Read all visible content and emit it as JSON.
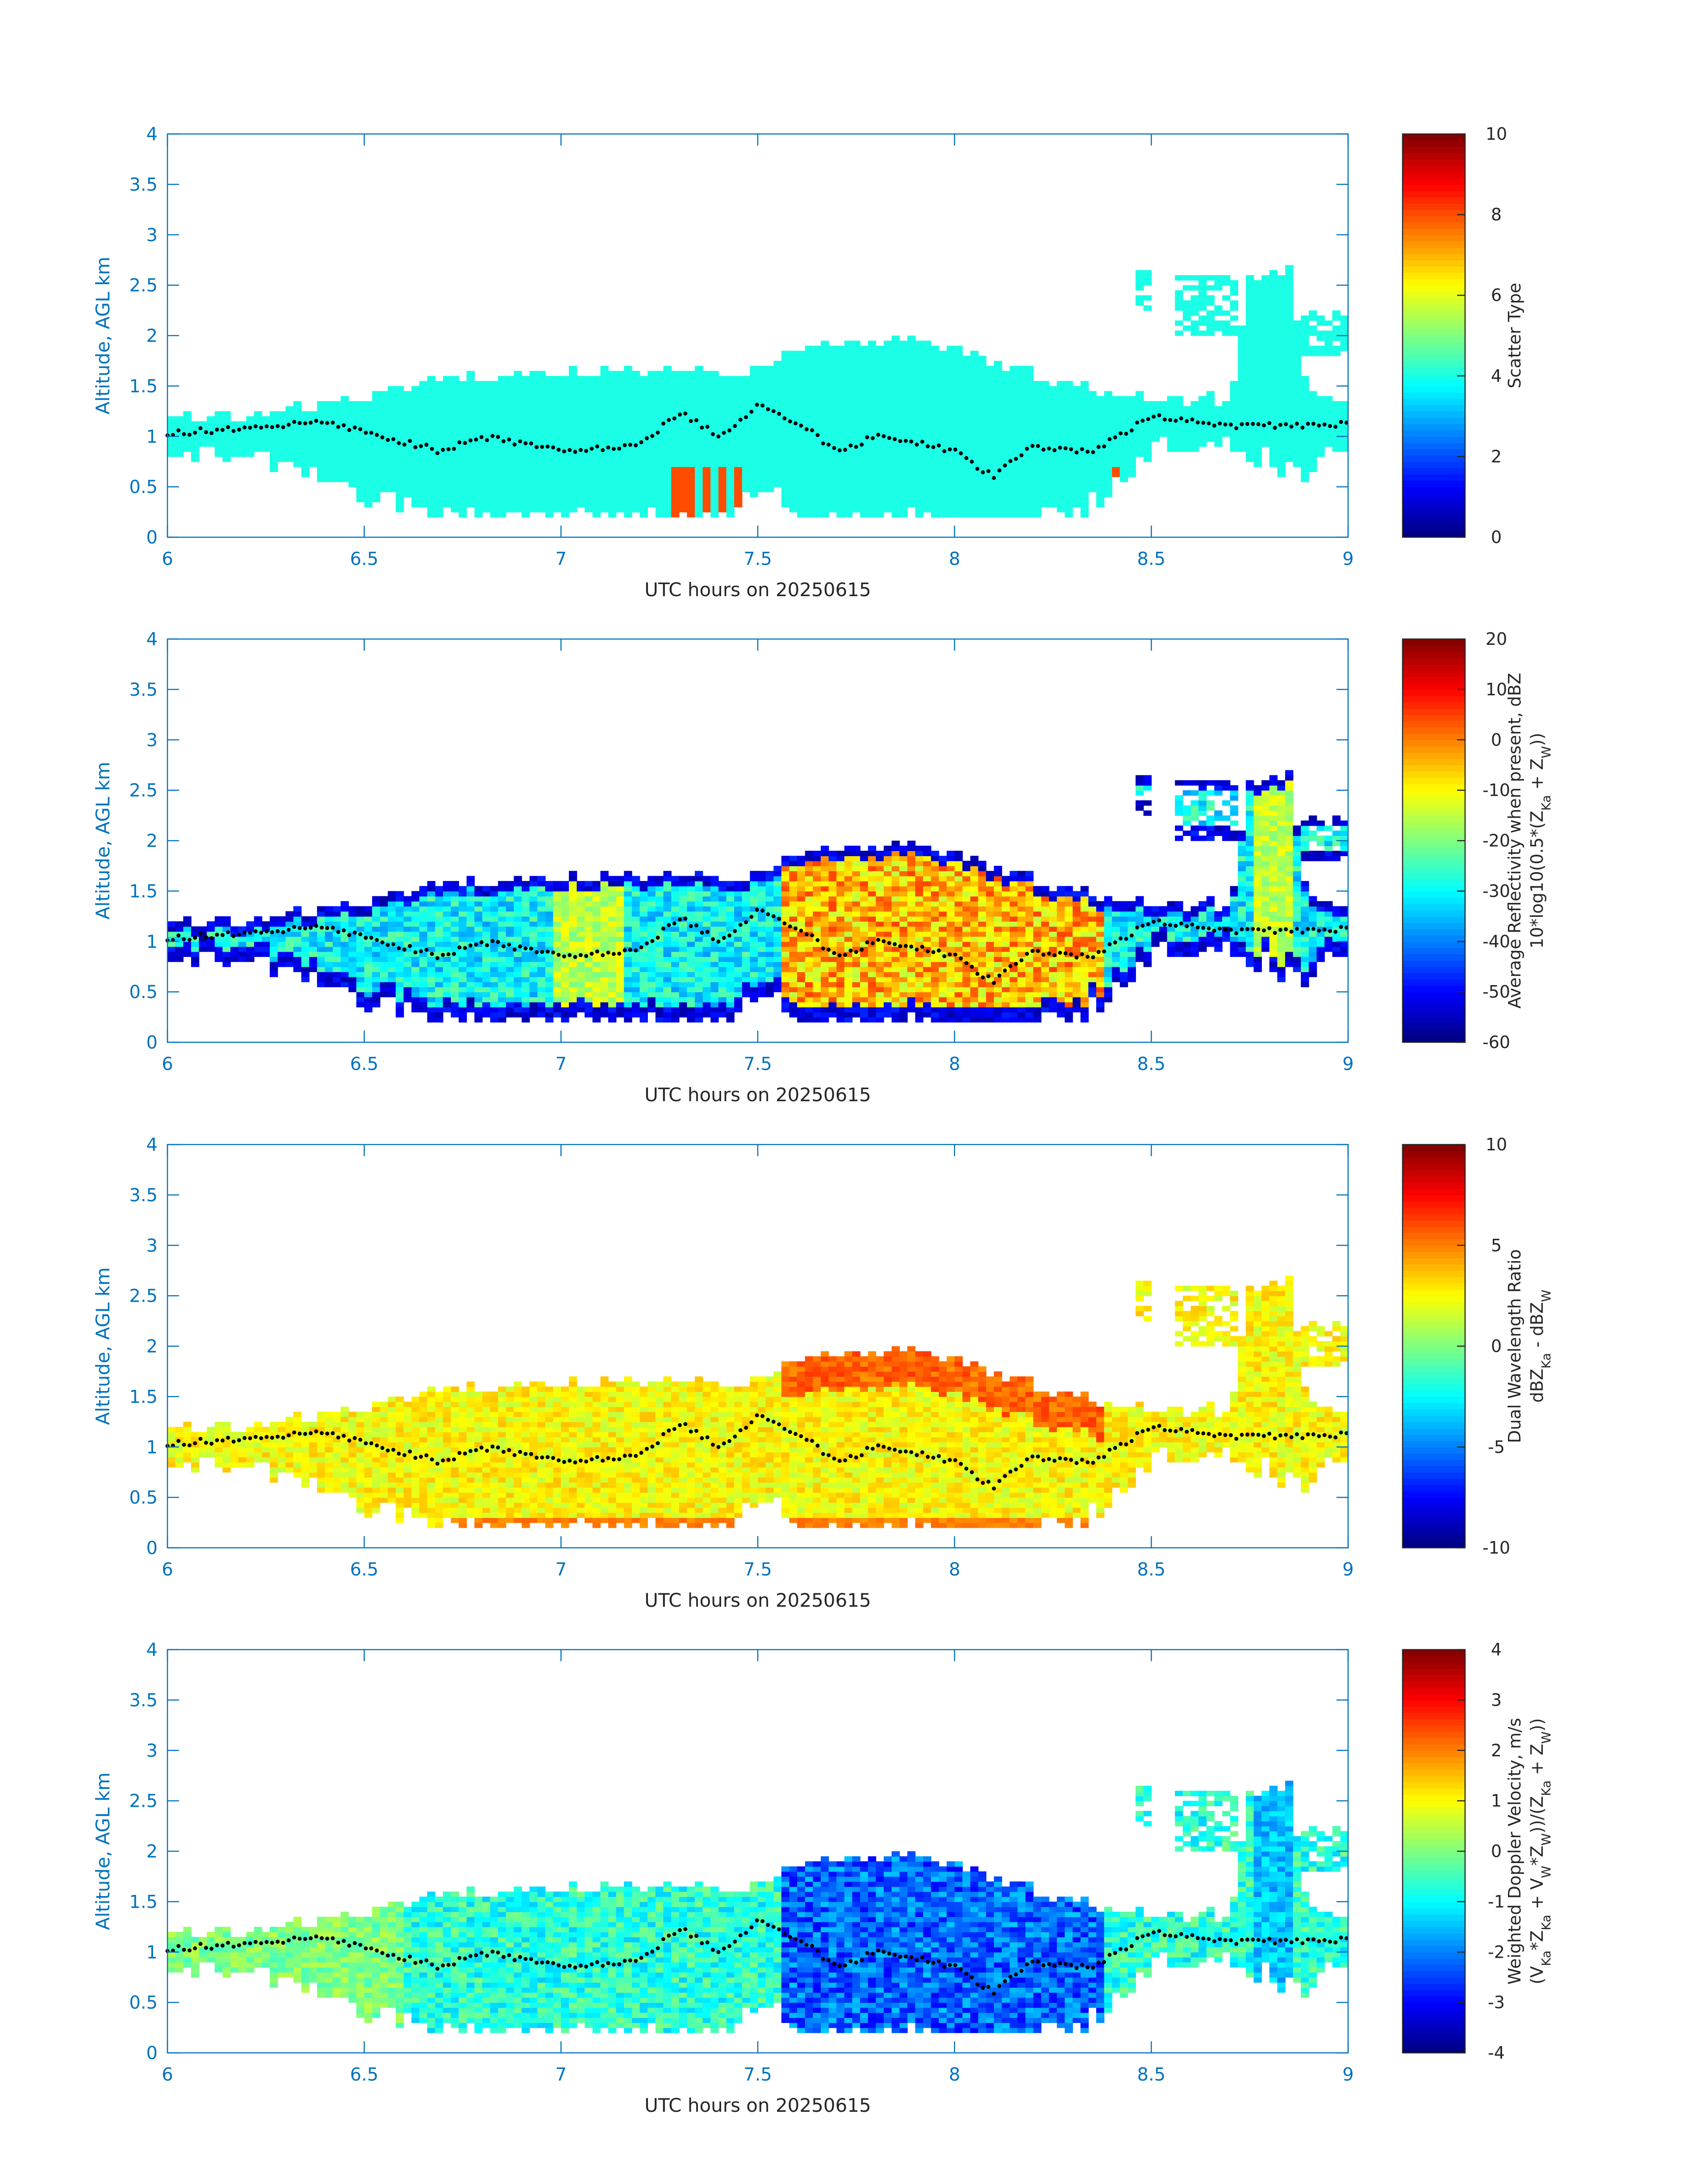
{
  "chart_data": [
    {
      "type": "heatmap",
      "xlabel": "UTC hours on 20250615",
      "ylabel": "Altitude, AGL km",
      "xlim": [
        6,
        9
      ],
      "ylim": [
        0,
        4
      ],
      "xticks": [
        "6",
        "6.5",
        "7",
        "7.5",
        "8",
        "8.5",
        "9"
      ],
      "yticks": [
        "0",
        "0.5",
        "1",
        "1.5",
        "2",
        "2.5",
        "3",
        "3.5",
        "4"
      ],
      "colormap": "jet",
      "clim": [
        0,
        10
      ],
      "cticks": [
        "0",
        "2",
        "4",
        "6",
        "8",
        "10"
      ],
      "colorbar_label": [
        [
          {
            "t": "Scatter Type"
          }
        ]
      ],
      "field": "scatter_type",
      "typical_value": 4,
      "notable_value": 8
    },
    {
      "type": "heatmap",
      "xlabel": "UTC hours on 20250615",
      "ylabel": "Altitude, AGL km",
      "xlim": [
        6,
        9
      ],
      "ylim": [
        0,
        4
      ],
      "xticks": [
        "6",
        "6.5",
        "7",
        "7.5",
        "8",
        "8.5",
        "9"
      ],
      "yticks": [
        "0",
        "0.5",
        "1",
        "1.5",
        "2",
        "2.5",
        "3",
        "3.5",
        "4"
      ],
      "colormap": "jet",
      "clim": [
        -60,
        20
      ],
      "cticks": [
        "-60",
        "-50",
        "-40",
        "-30",
        "-20",
        "-10",
        "0",
        "10",
        "20"
      ],
      "colorbar_label": [
        [
          {
            "t": "Average Reflectivity when present, dBZ"
          }
        ],
        [
          {
            "t": "10*log10(0.5*(Z"
          },
          {
            "t": "Ka",
            "sub": true
          },
          {
            "t": " + Z"
          },
          {
            "t": "W",
            "sub": true
          },
          {
            "t": "))"
          }
        ]
      ],
      "field": "reflectivity",
      "typical_value": -30,
      "core_value": -5
    },
    {
      "type": "heatmap",
      "xlabel": "UTC hours on 20250615",
      "ylabel": "Altitude, AGL km",
      "xlim": [
        6,
        9
      ],
      "ylim": [
        0,
        4
      ],
      "xticks": [
        "6",
        "6.5",
        "7",
        "7.5",
        "8",
        "8.5",
        "9"
      ],
      "yticks": [
        "0",
        "0.5",
        "1",
        "1.5",
        "2",
        "2.5",
        "3",
        "3.5",
        "4"
      ],
      "colormap": "jet",
      "clim": [
        -10,
        10
      ],
      "cticks": [
        "-10",
        "-5",
        "0",
        "5",
        "10"
      ],
      "colorbar_label": [
        [
          {
            "t": "Dual Wavelength Ratio"
          }
        ],
        [
          {
            "t": "dBZ"
          },
          {
            "t": "Ka",
            "sub": true
          },
          {
            "t": " - dBZ"
          },
          {
            "t": "W",
            "sub": true
          }
        ]
      ],
      "field": "dwr",
      "typical_value": 2.5,
      "core_value": 5.5
    },
    {
      "type": "heatmap",
      "xlabel": "UTC hours on 20250615",
      "ylabel": "Altitude, AGL km",
      "xlim": [
        6,
        9
      ],
      "ylim": [
        0,
        4
      ],
      "xticks": [
        "6",
        "6.5",
        "7",
        "7.5",
        "8",
        "8.5",
        "9"
      ],
      "yticks": [
        "0",
        "0.5",
        "1",
        "1.5",
        "2",
        "2.5",
        "3",
        "3.5",
        "4"
      ],
      "colormap": "jet",
      "clim": [
        -4,
        4
      ],
      "cticks": [
        "-4",
        "-3",
        "-2",
        "-1",
        "0",
        "1",
        "2",
        "3",
        "4"
      ],
      "colorbar_label": [
        [
          {
            "t": "Weighted Doppler Velocity, m/s"
          }
        ],
        [
          {
            "t": "(V"
          },
          {
            "t": "Ka",
            "sub": true
          },
          {
            "t": "*Z"
          },
          {
            "t": "Ka",
            "sub": true
          },
          {
            "t": " + V"
          },
          {
            "t": "W",
            "sub": true
          },
          {
            "t": "*Z"
          },
          {
            "t": "W",
            "sub": true
          },
          {
            "t": "))/(Z"
          },
          {
            "t": "Ka",
            "sub": true
          },
          {
            "t": " + Z"
          },
          {
            "t": "W",
            "sub": true
          },
          {
            "t": "))"
          }
        ]
      ],
      "field": "velocity",
      "typical_value": -0.7,
      "core_value": -2.2
    }
  ],
  "cloud_layer": {
    "time": [
      6.0,
      6.2,
      6.4,
      6.6,
      6.7,
      7.0,
      7.25,
      7.45,
      7.5,
      7.6,
      7.9,
      8.1,
      8.3,
      8.4,
      8.5,
      8.7,
      8.75,
      8.8,
      8.85,
      8.9,
      9.0
    ],
    "top_km": [
      1.15,
      1.2,
      1.3,
      1.45,
      1.55,
      1.6,
      1.65,
      1.6,
      1.7,
      1.85,
      1.95,
      1.7,
      1.5,
      1.4,
      1.35,
      1.35,
      2.6,
      2.6,
      2.6,
      1.4,
      1.35
    ],
    "base_km": [
      0.95,
      0.8,
      0.6,
      0.3,
      0.2,
      0.2,
      0.2,
      0.2,
      0.6,
      0.2,
      0.2,
      0.2,
      0.2,
      0.5,
      0.9,
      0.9,
      0.8,
      0.8,
      0.7,
      0.7,
      0.9
    ],
    "upper_patches": [
      [
        8.45,
        8.5,
        2.3,
        2.6
      ],
      [
        8.55,
        8.72,
        2.0,
        2.55
      ],
      [
        8.88,
        9.0,
        1.8,
        2.2
      ]
    ]
  },
  "marker_series": {
    "time": [
      6.0,
      6.25,
      6.4,
      6.5,
      6.7,
      6.8,
      7.0,
      7.2,
      7.3,
      7.4,
      7.5,
      7.6,
      7.7,
      7.8,
      7.9,
      8.0,
      8.1,
      8.2,
      8.35,
      8.5,
      8.6,
      8.7,
      9.0
    ],
    "altitude_km": [
      1.03,
      1.1,
      1.15,
      1.05,
      0.85,
      1.0,
      0.85,
      0.9,
      1.25,
      1.0,
      1.3,
      1.15,
      0.85,
      1.0,
      0.95,
      0.85,
      0.6,
      0.9,
      0.85,
      1.2,
      1.15,
      1.1,
      1.12
    ]
  },
  "colors": {
    "axis": "#0072bd",
    "marker": "#000000"
  }
}
